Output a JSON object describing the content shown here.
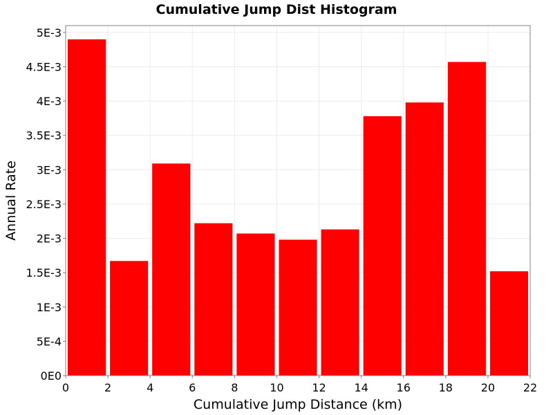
{
  "chart_data": {
    "type": "bar",
    "title": "Cumulative Jump Dist Histogram",
    "xlabel": "Cumulative Jump Distance (km)",
    "ylabel": "Annual Rate",
    "xlim": [
      0,
      22
    ],
    "ylim": [
      0,
      0.0051
    ],
    "x_ticks": [
      0,
      2,
      4,
      6,
      8,
      10,
      12,
      14,
      16,
      18,
      20,
      22
    ],
    "x_tick_labels": [
      "0",
      "2",
      "4",
      "6",
      "8",
      "10",
      "12",
      "14",
      "16",
      "18",
      "20",
      "22"
    ],
    "y_ticks": [
      0,
      0.0005,
      0.001,
      0.0015,
      0.002,
      0.0025,
      0.003,
      0.0035,
      0.004,
      0.0045,
      0.005
    ],
    "y_tick_labels": [
      "0E0",
      "5E-4",
      "1E-3",
      "1.5E-3",
      "2E-3",
      "2.5E-3",
      "3E-3",
      "3.5E-3",
      "4E-3",
      "4.5E-3",
      "5E-3"
    ],
    "bin_starts": [
      0,
      2,
      4,
      6,
      8,
      10,
      12,
      14,
      16,
      18,
      20
    ],
    "bin_width": 2,
    "values": [
      0.0049,
      0.00167,
      0.00309,
      0.00222,
      0.00207,
      0.00198,
      0.00213,
      0.00378,
      0.00398,
      0.00457,
      0.00152
    ],
    "bar_color": "#ff0000",
    "grid": true,
    "grid_color": "#ebebeb",
    "plot_background": "#ffffff",
    "axis_color": "#808080"
  }
}
